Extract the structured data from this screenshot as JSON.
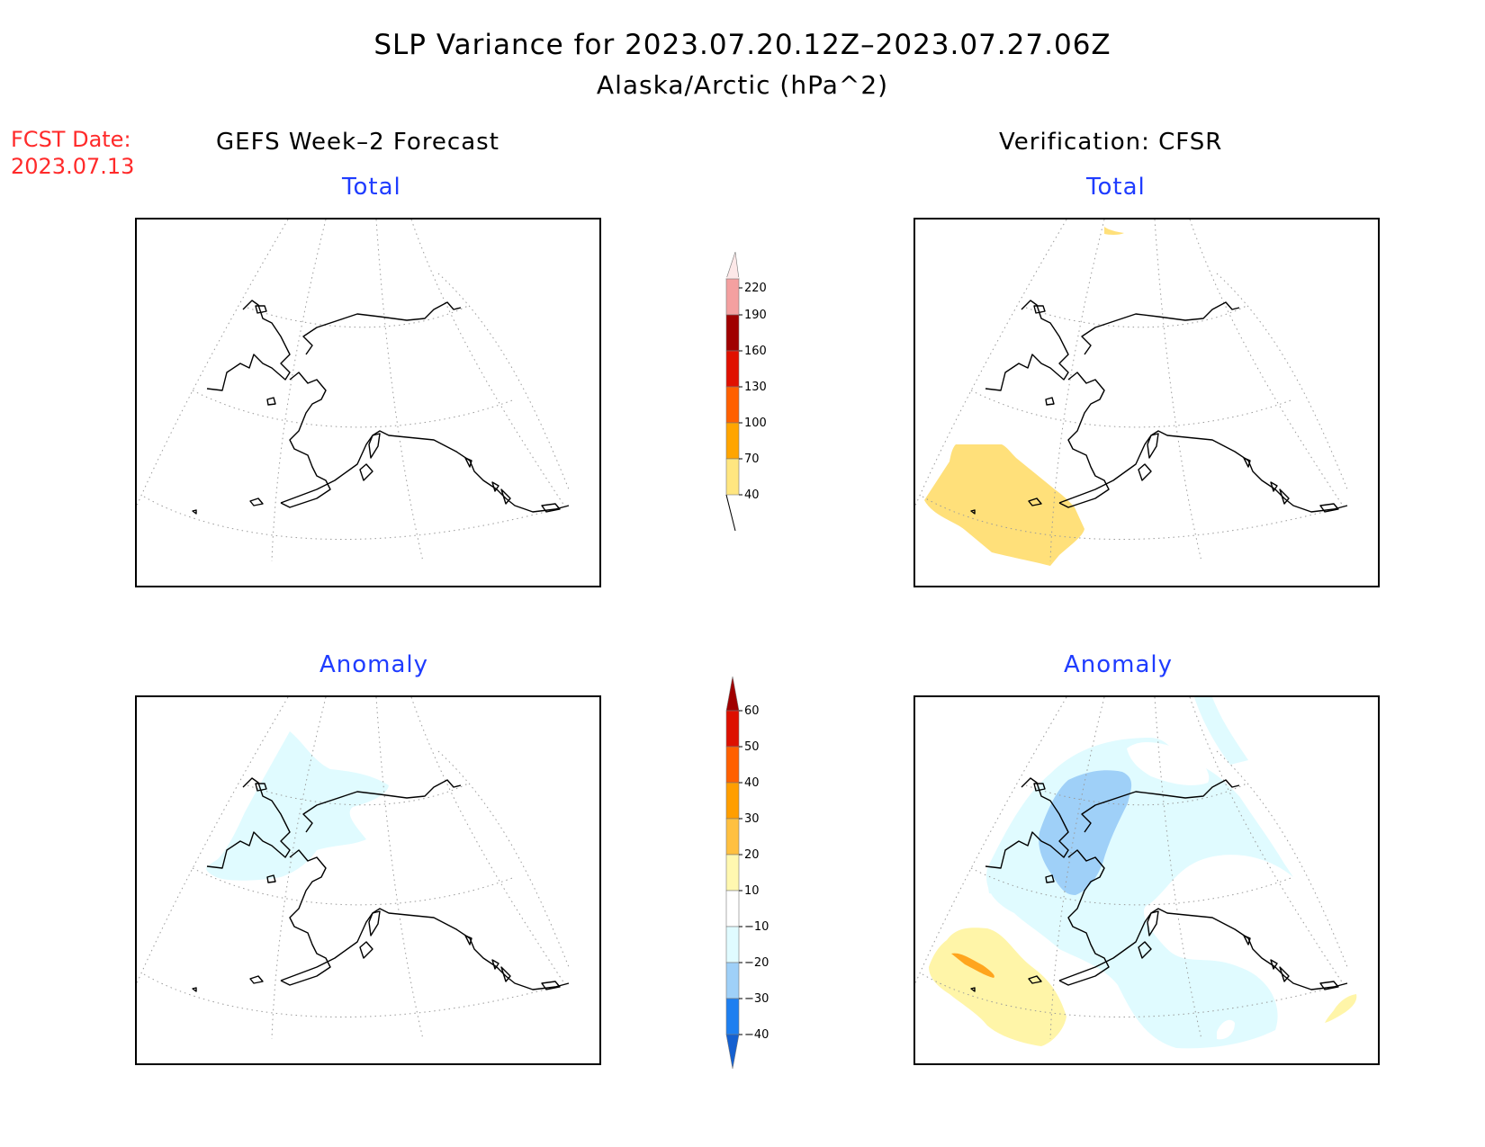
{
  "title": {
    "line1": "SLP Variance for 2023.07.20.12Z–2023.07.27.06Z",
    "line2": "Alaska/Arctic (hPa^2)"
  },
  "fcst": {
    "label": "FCST Date:",
    "date": "2023.07.13"
  },
  "columns": {
    "left": "GEFS Week–2 Forecast",
    "right": "Verification: CFSR"
  },
  "panels": {
    "total_label": "Total",
    "anomaly_label": "Anomaly"
  },
  "total_colorbar": {
    "levels": [
      "40",
      "70",
      "100",
      "130",
      "160",
      "190",
      "220"
    ],
    "colors": [
      "#ffe680",
      "#ffa500",
      "#ff6000",
      "#e01000",
      "#a00000",
      "#f4a0a0",
      "#fde8e8"
    ]
  },
  "anomaly_colorbar": {
    "levels": [
      "−40",
      "−30",
      "−20",
      "−10",
      "10",
      "20",
      "30",
      "40",
      "50",
      "60"
    ],
    "colors": [
      "#1560d0",
      "#1e7ff0",
      "#9fd0f8",
      "#e0fbff",
      "#ffffff",
      "#fff8b0",
      "#ffc040",
      "#ff9e00",
      "#ff6000",
      "#dd1000",
      "#a00000"
    ]
  },
  "shading_colors": {
    "yellow": "#ffe07a",
    "light_yellow": "#fff5a8",
    "orange": "#ffa51e",
    "light_cyan": "#e0fbff",
    "light_blue": "#9fd0f8"
  }
}
